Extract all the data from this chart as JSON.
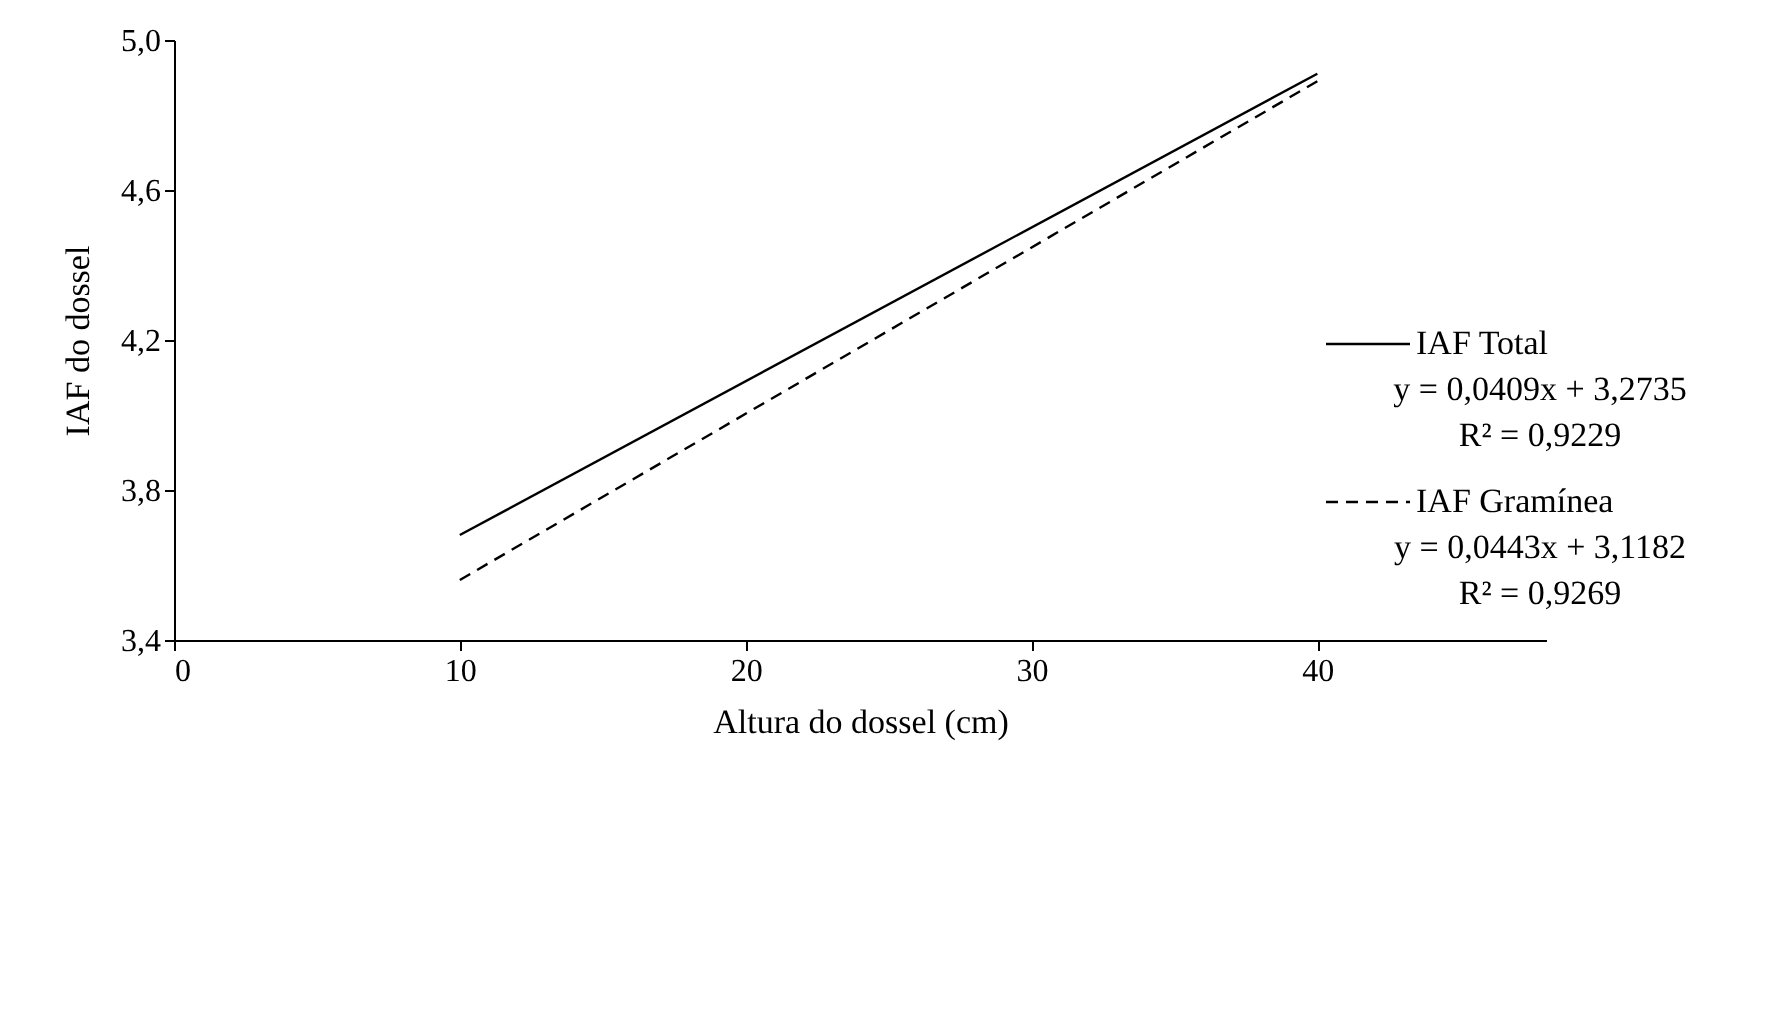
{
  "chart_data": {
    "type": "line",
    "xlabel": "Altura do dossel (cm)",
    "ylabel": "IAF do dossel",
    "x": [
      10,
      40
    ],
    "series": [
      {
        "name": "IAF Total",
        "color": "#000000",
        "values": [
          3.68,
          4.91
        ],
        "line_style": "solid"
      },
      {
        "name": "IAF Gramínea",
        "color": "#000000",
        "values": [
          3.56,
          4.89
        ],
        "line_style": "dashed"
      }
    ],
    "annotations": [
      "y = 0,0409x + 3,2735",
      "R² = 0,9229",
      "y = 0,0443x + 3,1182",
      "R² = 0,9269"
    ],
    "xlim": [
      0,
      48
    ],
    "xticks": [
      0,
      10,
      20,
      30,
      40
    ],
    "ylim": [
      3.4,
      5.0
    ],
    "yticks": [
      {
        "value": 3.4,
        "label": "3,4"
      },
      {
        "value": 3.8,
        "label": "3,8"
      },
      {
        "value": 4.2,
        "label": "4,2"
      },
      {
        "value": 4.6,
        "label": "4,6"
      },
      {
        "value": 5.0,
        "label": "5,0"
      }
    ],
    "grid": false,
    "legend": "right",
    "marker": "none"
  }
}
